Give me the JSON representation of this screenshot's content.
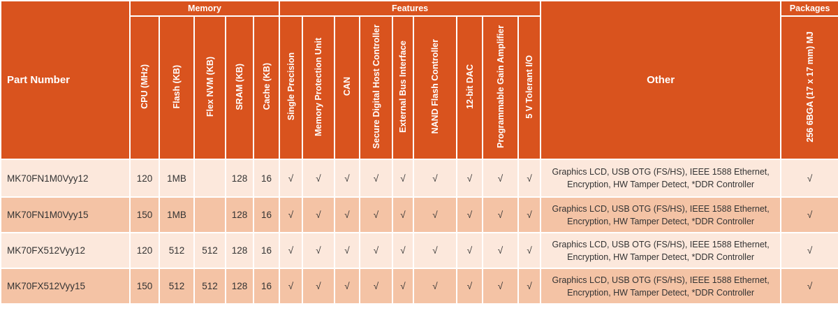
{
  "header": {
    "part_number": "Part Number",
    "groups": {
      "memory": "Memory",
      "features": "Features",
      "other": "Other",
      "packages": "Packages"
    },
    "columns": [
      "CPU (MHz)",
      "Flash (KB)",
      "Flex NVM (KB)",
      "SRAM (KB)",
      "Cache (KB)",
      "Single Precision",
      "Memory Protection Unit",
      "CAN",
      "Secure Digital Host Controller",
      "External Bus Interface",
      "NAND Flash Controller",
      "12-bit DAC",
      "Programmable Gain Amplifier",
      "5 V Tolerant I/O"
    ],
    "package": "256 6BGA (17 x 17 mm) MJ"
  },
  "colors": {
    "header": "#d9531e",
    "row_light": "#fce8dc",
    "row_dark": "#f4c3a5"
  },
  "rows": [
    {
      "part": "MK70FN1M0Vyy12",
      "cells": [
        "120",
        "1MB",
        "",
        "128",
        "16",
        "√",
        "√",
        "√",
        "√",
        "√",
        "√",
        "√",
        "√",
        "√"
      ],
      "other": "Graphics LCD, USB OTG (FS/HS), IEEE 1588 Ethernet, Encryption, HW Tamper Detect, *DDR Controller",
      "pkg": "√"
    },
    {
      "part": "MK70FN1M0Vyy15",
      "cells": [
        "150",
        "1MB",
        "",
        "128",
        "16",
        "√",
        "√",
        "√",
        "√",
        "√",
        "√",
        "√",
        "√",
        "√"
      ],
      "other": "Graphics LCD, USB OTG (FS/HS), IEEE 1588 Ethernet, Encryption, HW Tamper Detect, *DDR Controller",
      "pkg": "√"
    },
    {
      "part": "MK70FX512Vyy12",
      "cells": [
        "120",
        "512",
        "512",
        "128",
        "16",
        "√",
        "√",
        "√",
        "√",
        "√",
        "√",
        "√",
        "√",
        "√"
      ],
      "other": "Graphics LCD, USB OTG (FS/HS), IEEE 1588 Ethernet, Encryption, HW Tamper Detect, *DDR Controller",
      "pkg": "√"
    },
    {
      "part": "MK70FX512Vyy15",
      "cells": [
        "150",
        "512",
        "512",
        "128",
        "16",
        "√",
        "√",
        "√",
        "√",
        "√",
        "√",
        "√",
        "√",
        "√"
      ],
      "other": "Graphics LCD, USB OTG (FS/HS), IEEE 1588 Ethernet, Encryption, HW Tamper Detect, *DDR Controller",
      "pkg": "√"
    }
  ]
}
